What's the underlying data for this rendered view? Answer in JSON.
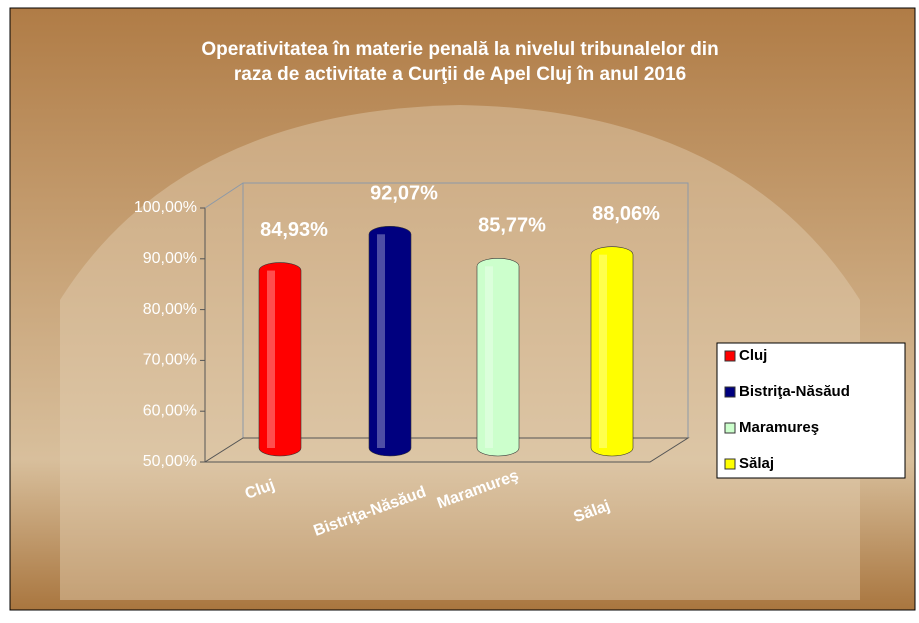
{
  "chart_data": {
    "type": "bar",
    "title": [
      "Operativitatea în materie penală la nivelul tribunalelor din",
      "raza de activitate a Curţii de Apel Cluj în anul 2016"
    ],
    "categories": [
      "Cluj",
      "Bistriţa-Năsăud",
      "Maramureş",
      "Sălaj"
    ],
    "values": [
      84.93,
      92.07,
      85.77,
      88.06
    ],
    "value_labels": [
      "84,93%",
      "92,07%",
      "85,77%",
      "88,06%"
    ],
    "colors": [
      "#ff0000",
      "#00007f",
      "#ccffcc",
      "#ffff00"
    ],
    "ylim": [
      50,
      100
    ],
    "yticks": [
      {
        "value": 50,
        "label": "50,00%"
      },
      {
        "value": 60,
        "label": "60,00%"
      },
      {
        "value": 70,
        "label": "70,00%"
      },
      {
        "value": 80,
        "label": "80,00%"
      },
      {
        "value": 90,
        "label": "90,00%"
      },
      {
        "value": 100,
        "label": "100,00%"
      }
    ],
    "grid": false,
    "legend": "right"
  }
}
